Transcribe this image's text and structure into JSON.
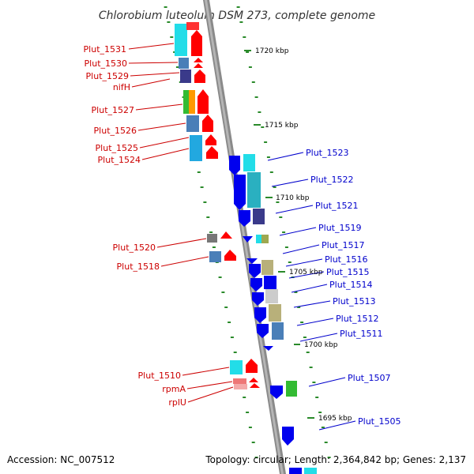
{
  "title": "Chlorobium luteolum DSM 273, complete genome",
  "accession": "Accession: NC_007512",
  "topology": "Topology: circular; Length: 2,364,842 bp; Genes: 2,137",
  "colors": {
    "backbone": "#888888",
    "tick": "#2a8a2a",
    "forward_arrow": "#ff0000",
    "reverse_arrow": "#0000ee",
    "forward_label": "#cc0000",
    "reverse_label": "#0000cc",
    "cog_cyan": "#22dde8",
    "cog_teal": "#2ab0c0",
    "cog_steelblue": "#4a7fb8",
    "cog_navy": "#3a3a8a",
    "cog_green": "#33bb33",
    "cog_orange": "#ff9900",
    "cog_gray": "#777777",
    "cog_khaki": "#b8b07a",
    "cog_lightgray": "#cccccc",
    "cog_salmon": "#ee7777"
  },
  "kbp_labels": [
    "1720 kbp",
    "1715 kbp",
    "1710 kbp",
    "1705 kbp",
    "1700 kbp",
    "1695 kbp"
  ],
  "forward_genes": [
    "Plut_1531",
    "Plut_1530",
    "Plut_1529",
    "nifH",
    "Plut_1527",
    "Plut_1526",
    "Plut_1525",
    "Plut_1524",
    "Plut_1520",
    "Plut_1518",
    "Plut_1510",
    "rpmA",
    "rplU"
  ],
  "reverse_genes": [
    "Plut_1523",
    "Plut_1522",
    "Plut_1521",
    "Plut_1519",
    "Plut_1517",
    "Plut_1516",
    "Plut_1515",
    "Plut_1514",
    "Plut_1513",
    "Plut_1512",
    "Plut_1511",
    "Plut_1507",
    "Plut_1505"
  ]
}
